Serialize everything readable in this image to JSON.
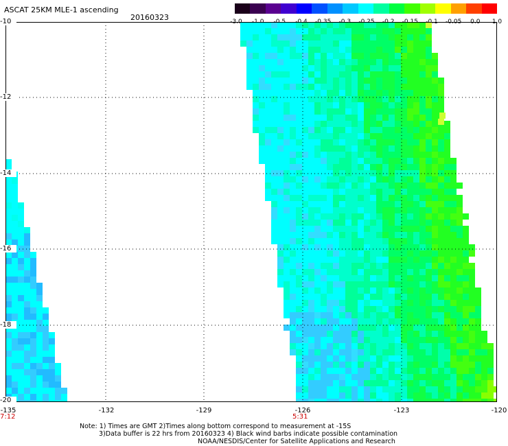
{
  "header": {
    "title": "ASCAT 25KM MLE-1 ascending",
    "date": "20160323"
  },
  "legend": {
    "labels": [
      "-3.0",
      "-1.0",
      "-0.5",
      "-0.4",
      "-0.35",
      "-0.3",
      "-0.25",
      "-0.2",
      "-0.15",
      "-0.1",
      "-0.05",
      "0.0",
      "1.0"
    ],
    "colors": [
      "#1a0a1a",
      "#4a0a6a",
      "#6a00c8",
      "#0000ff",
      "#0070ff",
      "#00c8ff",
      "#00ffff",
      "#00ff88",
      "#00ff00",
      "#88ff00",
      "#ffff00",
      "#ff8800",
      "#ff2200"
    ]
  },
  "map": {
    "y_labels": [
      "-10",
      "-12",
      "-14",
      "-16",
      "-18",
      "-20"
    ],
    "x_labels": [
      "-135",
      "-132",
      "-129",
      "-126",
      "-123",
      "-120"
    ],
    "times": [
      "7:12",
      "5:31"
    ],
    "swath_colors": [
      "#00ffff",
      "#00ffcc",
      "#00ff99",
      "#00ff66",
      "#22ee44",
      "#55ee22",
      "#33ccff",
      "#00ccff",
      "#ffff00"
    ]
  },
  "notes": {
    "line1": "Note: 1) Times are GMT 2)Times along bottom correspond to measurement at -15S",
    "line2": "3)Data buffer is 22 hrs from 20160323 4) Black wind barbs indicate possible contamination",
    "line3": "NOAA/NESDIS/Center for Satellite Applications and Research"
  }
}
